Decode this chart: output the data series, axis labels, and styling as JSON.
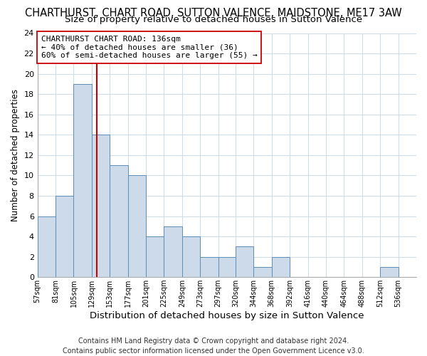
{
  "title": "CHARTHURST, CHART ROAD, SUTTON VALENCE, MAIDSTONE, ME17 3AW",
  "subtitle": "Size of property relative to detached houses in Sutton Valence",
  "xlabel": "Distribution of detached houses by size in Sutton Valence",
  "ylabel": "Number of detached properties",
  "footer_line1": "Contains HM Land Registry data © Crown copyright and database right 2024.",
  "footer_line2": "Contains public sector information licensed under the Open Government Licence v3.0.",
  "bar_edges": [
    57,
    81,
    105,
    129,
    153,
    177,
    201,
    225,
    249,
    273,
    297,
    320,
    344,
    368,
    392,
    416,
    440,
    464,
    488,
    512,
    536
  ],
  "bar_heights": [
    6,
    8,
    19,
    14,
    11,
    10,
    4,
    5,
    4,
    2,
    2,
    3,
    1,
    2,
    0,
    0,
    0,
    0,
    0,
    1,
    0
  ],
  "bar_color": "#ccdaea",
  "bar_edgecolor": "#5b8db8",
  "reference_line_x": 136,
  "reference_line_color": "#cc0000",
  "annotation_line1": "CHARTHURST CHART ROAD: 136sqm",
  "annotation_line2": "← 40% of detached houses are smaller (36)",
  "annotation_line3": "60% of semi-detached houses are larger (55) →",
  "ylim": [
    0,
    24
  ],
  "yticks": [
    0,
    2,
    4,
    6,
    8,
    10,
    12,
    14,
    16,
    18,
    20,
    22,
    24
  ],
  "tick_labels": [
    "57sqm",
    "81sqm",
    "105sqm",
    "129sqm",
    "153sqm",
    "177sqm",
    "201sqm",
    "225sqm",
    "249sqm",
    "273sqm",
    "297sqm",
    "320sqm",
    "344sqm",
    "368sqm",
    "392sqm",
    "416sqm",
    "440sqm",
    "464sqm",
    "488sqm",
    "512sqm",
    "536sqm"
  ],
  "background_color": "#ffffff",
  "grid_color": "#d0dce8",
  "title_fontsize": 10.5,
  "subtitle_fontsize": 9.5,
  "xlabel_fontsize": 9.5,
  "ylabel_fontsize": 8.5,
  "annotation_fontsize": 8.0,
  "footer_fontsize": 7.0,
  "tick_fontsize": 7.0,
  "ytick_fontsize": 8.0
}
